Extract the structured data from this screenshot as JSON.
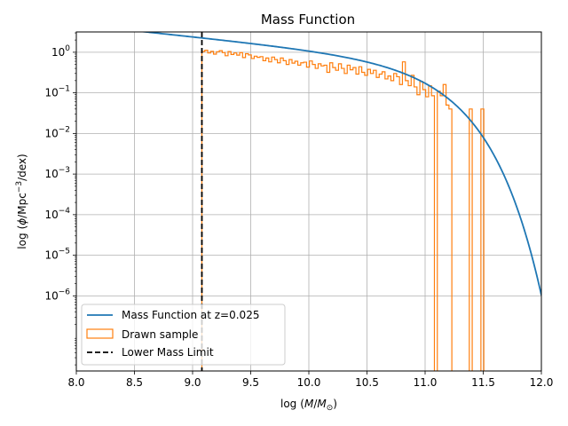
{
  "chart_data": {
    "type": "line",
    "title": "Mass Function",
    "xlabel": "log (M/M⊙)",
    "ylabel": "log (φ/Mpc⁻³/dex)",
    "xlim": [
      8.0,
      12.0
    ],
    "ylim_log10": [
      -7.85,
      0.5
    ],
    "y_scale": "log",
    "grid": true,
    "legend_position": "lower-left",
    "x_ticks": [
      {
        "v": 8.0,
        "label": "8.0"
      },
      {
        "v": 8.5,
        "label": "8.5"
      },
      {
        "v": 9.0,
        "label": "9.0"
      },
      {
        "v": 9.5,
        "label": "9.5"
      },
      {
        "v": 10.0,
        "label": "10.0"
      },
      {
        "v": 10.5,
        "label": "10.5"
      },
      {
        "v": 11.0,
        "label": "11.0"
      },
      {
        "v": 11.5,
        "label": "11.5"
      },
      {
        "v": 12.0,
        "label": "12.0"
      }
    ],
    "y_ticks": [
      {
        "e": 0,
        "base": "10",
        "exp": "0"
      },
      {
        "e": -1,
        "base": "10",
        "exp": "−1"
      },
      {
        "e": -2,
        "base": "10",
        "exp": "−2"
      },
      {
        "e": -3,
        "base": "10",
        "exp": "−3"
      },
      {
        "e": -4,
        "base": "10",
        "exp": "−4"
      },
      {
        "e": -5,
        "base": "10",
        "exp": "−5"
      },
      {
        "e": -6,
        "base": "10",
        "exp": "−6"
      }
    ],
    "colors": {
      "curve": "#1f77b4",
      "histogram": "#ff7f0e",
      "limit": "#000000",
      "grid": "#b0b0b0"
    },
    "series": [
      {
        "name": "Mass Function at z=0.025",
        "kind": "line",
        "schechter": {
          "log_phi_star": -0.55,
          "log_m_star": 10.9,
          "alpha": -1.3
        },
        "x_range": [
          8.0,
          12.0
        ]
      },
      {
        "name": "Drawn sample",
        "kind": "step-histogram",
        "x_start": 9.08,
        "bin_width": 0.025,
        "values": [
          1.04,
          1.12,
          0.96,
          1.05,
          0.9,
          1.03,
          1.09,
          0.98,
          0.82,
          1.04,
          0.88,
          0.96,
          0.85,
          0.98,
          0.74,
          0.92,
          0.86,
          0.7,
          0.8,
          0.75,
          0.78,
          0.62,
          0.72,
          0.58,
          0.76,
          0.66,
          0.55,
          0.72,
          0.62,
          0.5,
          0.66,
          0.54,
          0.6,
          0.48,
          0.55,
          0.57,
          0.43,
          0.61,
          0.5,
          0.4,
          0.52,
          0.46,
          0.48,
          0.32,
          0.55,
          0.42,
          0.36,
          0.52,
          0.4,
          0.3,
          0.48,
          0.37,
          0.42,
          0.29,
          0.44,
          0.32,
          0.27,
          0.38,
          0.3,
          0.36,
          0.24,
          0.29,
          0.33,
          0.22,
          0.26,
          0.2,
          0.3,
          0.25,
          0.16,
          0.58,
          0.2,
          0.15,
          0.27,
          0.14,
          0.09,
          0.19,
          0.12,
          0.08,
          0.15,
          0.085,
          0.0,
          0.11,
          0.085,
          0.16,
          0.05,
          0.04,
          0.0,
          0.0,
          0.0,
          0.0,
          0.0,
          0.0,
          0.04,
          0.0,
          0.0,
          0.0,
          0.04
        ]
      },
      {
        "name": "Lower Mass Limit",
        "kind": "vline",
        "x": 9.08
      }
    ]
  }
}
